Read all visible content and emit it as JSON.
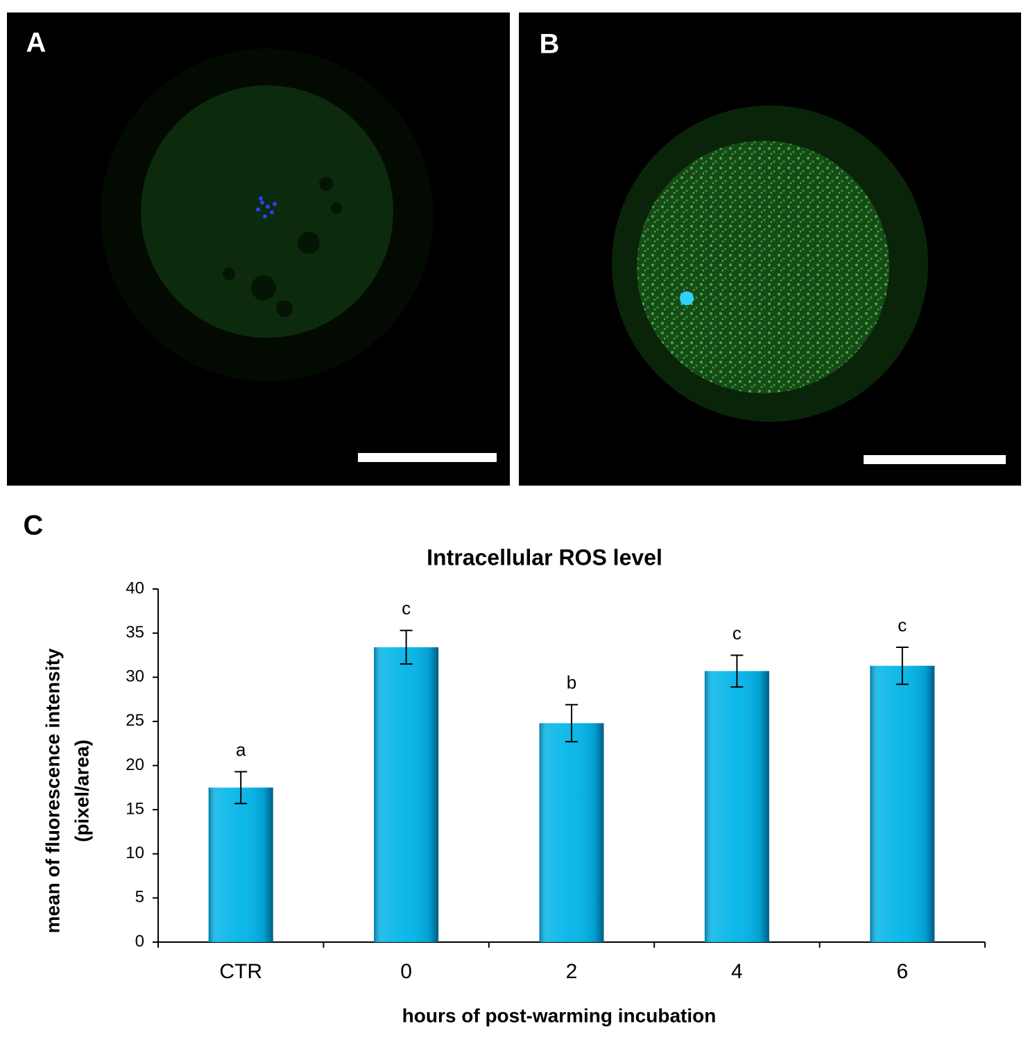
{
  "panel_labels": [
    "A",
    "B",
    "C"
  ],
  "chart_data": {
    "type": "bar",
    "title": "Intracellular ROS level",
    "categories": [
      "CTR",
      "0",
      "2",
      "4",
      "6"
    ],
    "values": [
      17.5,
      33.4,
      24.8,
      30.7,
      31.3
    ],
    "errors": [
      1.8,
      1.9,
      2.1,
      1.8,
      2.1
    ],
    "significance_labels": [
      "a",
      "c",
      "b",
      "c",
      "c"
    ],
    "color": "#00b4e8",
    "ylim": [
      0,
      40
    ],
    "yticks": [
      0,
      5,
      10,
      15,
      20,
      25,
      30,
      35,
      40
    ],
    "ylabel": [
      "mean of fluorescence  intensity",
      "(pixel/area)"
    ],
    "xlabel": "hours of post-warming incubation"
  }
}
